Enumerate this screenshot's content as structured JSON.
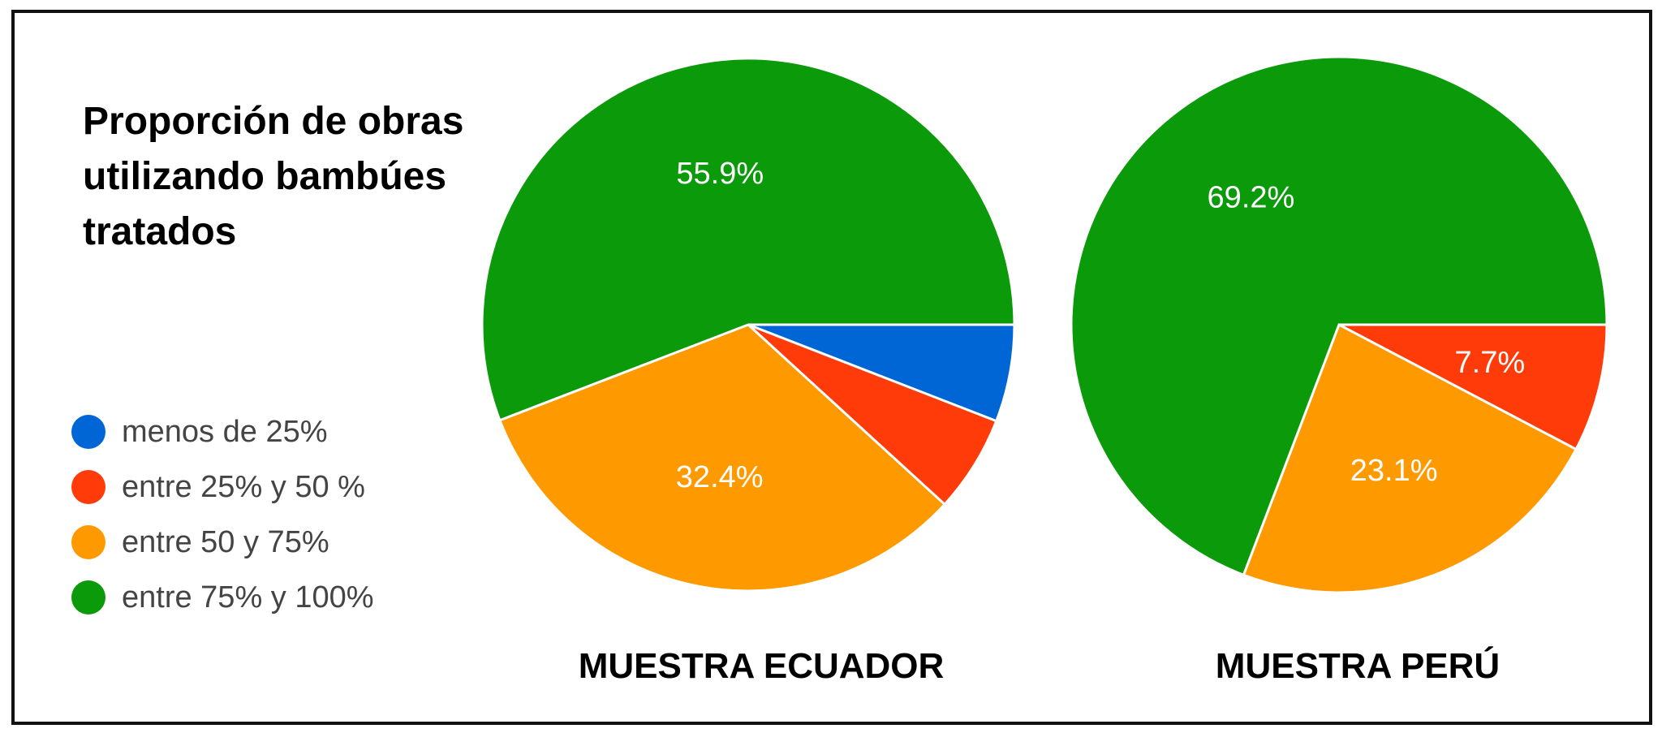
{
  "title": "Proporción de obras utilizando bambúes tratados",
  "legend": [
    {
      "label": "menos de 25%",
      "color": "#0066d6"
    },
    {
      "label": "entre 25% y 50 %",
      "color": "#ff3b0a"
    },
    {
      "label": "entre 50 y 75%",
      "color": "#ff9900"
    },
    {
      "label": "entre 75% y 100%",
      "color": "#0a9a0a"
    }
  ],
  "chart_data": [
    {
      "type": "pie",
      "title": "MUESTRA ECUADOR",
      "categories": [
        "menos de 25%",
        "entre 25% y 50 %",
        "entre 50 y 75%",
        "entre 75% y 100%"
      ],
      "values": [
        5.9,
        5.9,
        32.4,
        55.9
      ],
      "labels": [
        "",
        "",
        "32.4%",
        "55.9%"
      ],
      "colors": [
        "#0066d6",
        "#ff3b0a",
        "#ff9900",
        "#0a9a0a"
      ]
    },
    {
      "type": "pie",
      "title": "MUESTRA PERÚ",
      "categories": [
        "menos de 25%",
        "entre 25% y 50 %",
        "entre 50 y 75%",
        "entre 75% y 100%"
      ],
      "values": [
        0,
        7.7,
        23.1,
        69.2
      ],
      "labels": [
        "",
        "7.7%",
        "23.1%",
        "69.2%"
      ],
      "colors": [
        "#0066d6",
        "#ff3b0a",
        "#ff9900",
        "#0a9a0a"
      ]
    }
  ]
}
